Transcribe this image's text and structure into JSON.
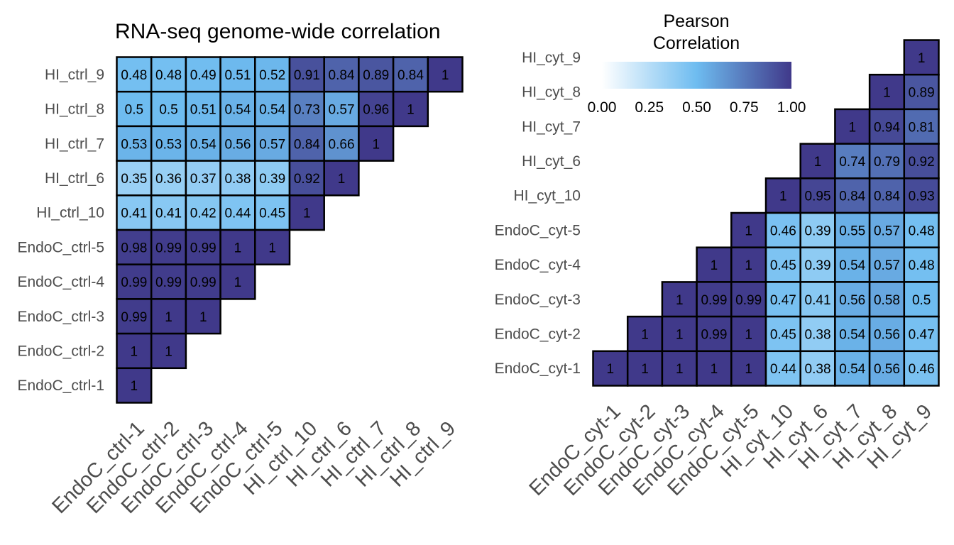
{
  "colors": {
    "low": "#ffffff",
    "mid": "#6ebcf0",
    "high": "#40398a",
    "border": "#000000"
  },
  "legend": {
    "title_line1": "Pearson",
    "title_line2": "Correlation",
    "ticks": [
      "0.00",
      "0.25",
      "0.50",
      "0.75",
      "1.00"
    ],
    "tick_values": [
      0,
      0.25,
      0.5,
      0.75,
      1.0
    ]
  },
  "chart_data": [
    {
      "type": "heatmap",
      "title": "RNA-seq genome-wide correlation",
      "x_labels": [
        "EndoC_ctrl-1",
        "EndoC_ctrl-2",
        "EndoC_ctrl-3",
        "EndoC_ctrl-4",
        "EndoC_ctrl-5",
        "HI_ctrl_10",
        "HI_ctrl_6",
        "HI_ctrl_7",
        "HI_ctrl_8",
        "HI_ctrl_9"
      ],
      "y_labels": [
        "HI_ctrl_9",
        "HI_ctrl_8",
        "HI_ctrl_7",
        "HI_ctrl_6",
        "HI_ctrl_10",
        "EndoC_ctrl-5",
        "EndoC_ctrl-4",
        "EndoC_ctrl-3",
        "EndoC_ctrl-2",
        "EndoC_ctrl-1"
      ],
      "labels": [
        [
          "0.48",
          "0.48",
          "0.49",
          "0.51",
          "0.52",
          "0.91",
          "0.84",
          "0.89",
          "0.84",
          "1"
        ],
        [
          "0.5",
          "0.5",
          "0.51",
          "0.54",
          "0.54",
          "0.73",
          "0.57",
          "0.96",
          "1"
        ],
        [
          "0.53",
          "0.53",
          "0.54",
          "0.56",
          "0.57",
          "0.84",
          "0.66",
          "1"
        ],
        [
          "0.35",
          "0.36",
          "0.37",
          "0.38",
          "0.39",
          "0.92",
          "1"
        ],
        [
          "0.41",
          "0.41",
          "0.42",
          "0.44",
          "0.45",
          "1"
        ],
        [
          "0.98",
          "0.99",
          "0.99",
          "1",
          "1"
        ],
        [
          "0.99",
          "0.99",
          "0.99",
          "1"
        ],
        [
          "0.99",
          "1",
          "1"
        ],
        [
          "1",
          "1"
        ],
        [
          "1"
        ]
      ]
    },
    {
      "type": "heatmap",
      "title": "",
      "x_labels": [
        "EndoC_cyt-1",
        "EndoC_cyt-2",
        "EndoC_cyt-3",
        "EndoC_cyt-4",
        "EndoC_cyt-5",
        "HI_cyt_10",
        "HI_cyt_6",
        "HI_cyt_7",
        "HI_cyt_8",
        "HI_cyt_9"
      ],
      "y_labels": [
        "HI_cyt_9",
        "HI_cyt_8",
        "HI_cyt_7",
        "HI_cyt_6",
        "HI_cyt_10",
        "EndoC_cyt-5",
        "EndoC_cyt-4",
        "EndoC_cyt-3",
        "EndoC_cyt-2",
        "EndoC_cyt-1"
      ],
      "labels": [
        [
          "1"
        ],
        [
          "1",
          "0.89"
        ],
        [
          "1",
          "0.94",
          "0.81"
        ],
        [
          "1",
          "0.74",
          "0.79",
          "0.92"
        ],
        [
          "1",
          "0.95",
          "0.84",
          "0.84",
          "0.93"
        ],
        [
          "1",
          "0.46",
          "0.39",
          "0.55",
          "0.57",
          "0.48"
        ],
        [
          "1",
          "1",
          "0.45",
          "0.39",
          "0.54",
          "0.57",
          "0.48"
        ],
        [
          "1",
          "0.99",
          "0.99",
          "0.47",
          "0.41",
          "0.56",
          "0.58",
          "0.5"
        ],
        [
          "1",
          "1",
          "0.99",
          "1",
          "0.45",
          "0.38",
          "0.54",
          "0.56",
          "0.47"
        ],
        [
          "1",
          "1",
          "1",
          "1",
          "1",
          "0.44",
          "0.38",
          "0.54",
          "0.56",
          "0.46"
        ]
      ]
    }
  ]
}
